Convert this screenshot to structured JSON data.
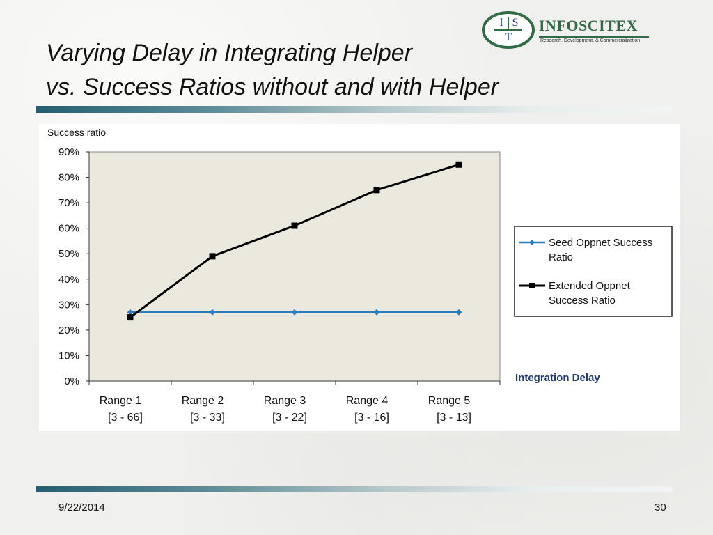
{
  "slide": {
    "title_line1": "Varying Delay in Integrating Helper",
    "title_line2": "vs. Success Ratios without and with Helper",
    "date": "9/22/2014",
    "page_number": "30"
  },
  "logo": {
    "letters": [
      "I",
      "S",
      "T"
    ],
    "name": "INFOSCITEX",
    "tagline": "Research, Development, & Commercialization"
  },
  "chart_data": {
    "type": "line",
    "ylabel": "Success ratio",
    "xlabel": "Integration Delay",
    "categories": [
      {
        "name": "Range 1",
        "interval": "[3 - 66]"
      },
      {
        "name": "Range 2",
        "interval": "[3 - 33]"
      },
      {
        "name": "Range 3",
        "interval": "[3 - 22]"
      },
      {
        "name": "Range 4",
        "interval": "[3 - 16]"
      },
      {
        "name": "Range 5",
        "interval": "[3 - 13]"
      }
    ],
    "ylim": [
      0,
      90
    ],
    "yticks": [
      "0%",
      "10%",
      "20%",
      "30%",
      "40%",
      "50%",
      "60%",
      "70%",
      "80%",
      "90%"
    ],
    "series": [
      {
        "name": "Seed Oppnet Success Ratio",
        "values": [
          27,
          27,
          27,
          27,
          27
        ],
        "color": "#2b7bbf",
        "marker": "diamond"
      },
      {
        "name": "Extended Oppnet Success Ratio",
        "values": [
          25,
          49,
          61,
          75,
          85
        ],
        "color": "#000000",
        "marker": "square"
      }
    ],
    "grid": false,
    "plot_background": "#ebe9de",
    "legend": "right"
  }
}
